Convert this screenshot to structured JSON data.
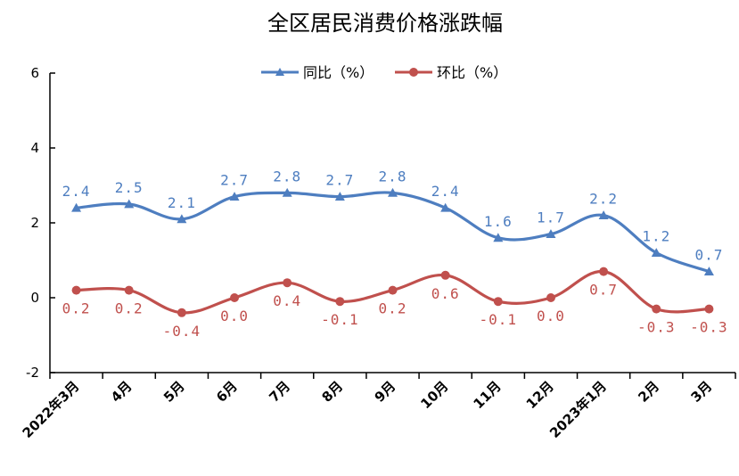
{
  "chart_data": {
    "type": "line",
    "title": "全区居民消费价格涨跌幅",
    "categories": [
      "2022年3月",
      "4月",
      "5月",
      "6月",
      "7月",
      "8月",
      "9月",
      "10月",
      "11月",
      "12月",
      "2023年1月",
      "2月",
      "3月"
    ],
    "series": [
      {
        "name": "同比（%）",
        "color": "#4e7ec0",
        "marker": "triangle",
        "values": [
          2.4,
          2.5,
          2.1,
          2.7,
          2.8,
          2.7,
          2.8,
          2.4,
          1.6,
          1.7,
          2.2,
          1.2,
          0.7
        ],
        "labels": [
          "2.4",
          "2.5",
          "2.1",
          "2.7",
          "2.8",
          "2.7",
          "2.8",
          "2.4",
          "1.6",
          "1.7",
          "2.2",
          "1.2",
          "0.7"
        ]
      },
      {
        "name": "环比（%）",
        "color": "#c0504d",
        "marker": "circle",
        "values": [
          0.2,
          0.2,
          -0.4,
          0.0,
          0.4,
          -0.1,
          0.2,
          0.6,
          -0.1,
          0.0,
          0.7,
          -0.3,
          -0.3
        ],
        "labels": [
          "0.2",
          "0.2",
          "-0.4",
          "0.0",
          "0.4",
          "-0.1",
          "0.2",
          "0.6",
          "-0.1",
          "0.0",
          "0.7",
          "-0.3",
          "-0.3"
        ]
      }
    ],
    "yticks": [
      "-2",
      "0",
      "2",
      "4",
      "6"
    ],
    "ylim": [
      -2,
      6
    ],
    "grid": false,
    "legend": "top-center",
    "smooth": true
  }
}
